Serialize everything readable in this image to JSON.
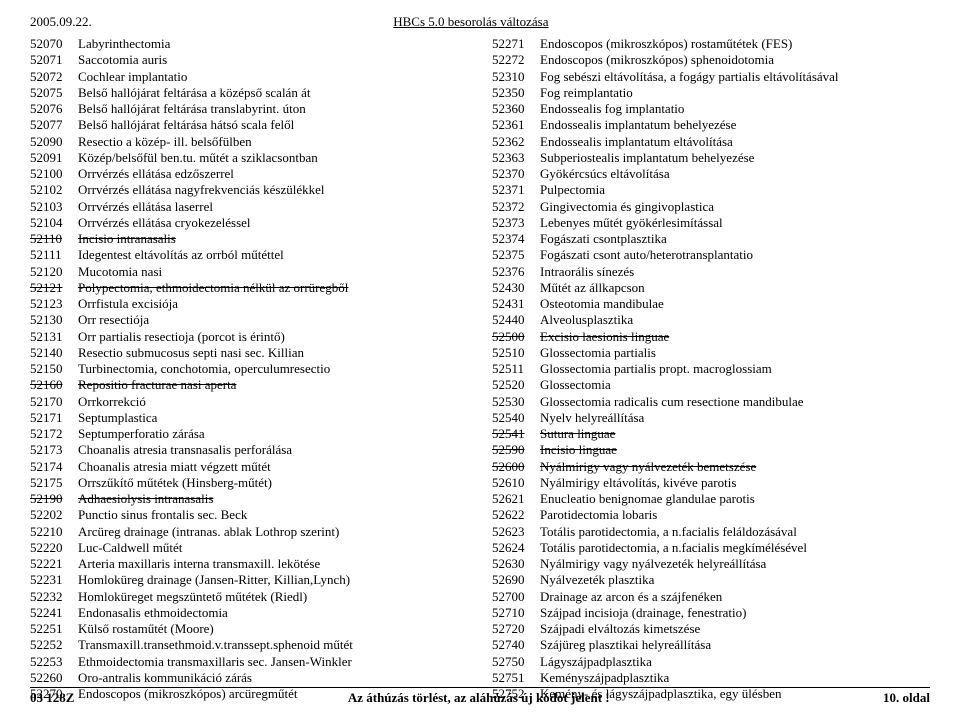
{
  "header": {
    "date": "2005.09.22.",
    "title": "HBCs 5.0 besorolás változása"
  },
  "left": [
    {
      "c": "52070",
      "t": "Labyrinthectomia"
    },
    {
      "c": "52071",
      "t": "Saccotomia auris"
    },
    {
      "c": "52072",
      "t": "Cochlear implantatio"
    },
    {
      "c": "52075",
      "t": "Belső hallójárat feltárása a középső scalán át"
    },
    {
      "c": "52076",
      "t": "Belső hallójárat feltárása translabyrint. úton"
    },
    {
      "c": "52077",
      "t": "Belső hallójárat feltárása hátsó scala felől"
    },
    {
      "c": "52090",
      "t": "Resectio a közép- ill. belsőfülben"
    },
    {
      "c": "52091",
      "t": "Közép/belsőfül ben.tu. műtét a sziklacsontban"
    },
    {
      "c": "52100",
      "t": "Orrvérzés ellátása edzőszerrel"
    },
    {
      "c": "52102",
      "t": "Orrvérzés ellátása nagyfrekvenciás készülékkel"
    },
    {
      "c": "52103",
      "t": "Orrvérzés ellátása laserrel"
    },
    {
      "c": "52104",
      "t": "Orrvérzés ellátása cryokezeléssel"
    },
    {
      "c": "52110",
      "t": "Incisio intranasalis",
      "s": true
    },
    {
      "c": "52111",
      "t": "Idegentest eltávolítás az orrból műtéttel"
    },
    {
      "c": "52120",
      "t": "Mucotomia nasi"
    },
    {
      "c": "52121",
      "t": "Polypectomia, ethmoidectomia nélkül az orrüregből",
      "s": true
    },
    {
      "c": "52123",
      "t": "Orrfistula excisiója"
    },
    {
      "c": "52130",
      "t": "Orr resectiója"
    },
    {
      "c": "52131",
      "t": "Orr partialis resectioja (porcot is érintő)"
    },
    {
      "c": "52140",
      "t": "Resectio submucosus septi nasi sec. Killian"
    },
    {
      "c": "52150",
      "t": "Turbinectomia, conchotomia, operculumresectio"
    },
    {
      "c": "52160",
      "t": "Repositio fracturae nasi aperta",
      "s": true
    },
    {
      "c": "52170",
      "t": "Orrkorrekció"
    },
    {
      "c": "52171",
      "t": "Septumplastica"
    },
    {
      "c": "52172",
      "t": "Septumperforatio zárása"
    },
    {
      "c": "52173",
      "t": "Choanalis atresia transnasalis perforálása"
    },
    {
      "c": "52174",
      "t": "Choanalis atresia miatt végzett műtét"
    },
    {
      "c": "52175",
      "t": "Orrszűkítő műtétek (Hinsberg-műtét)"
    },
    {
      "c": "52190",
      "t": "Adhaesiolysis intranasalis",
      "s": true
    },
    {
      "c": "52202",
      "t": "Punctio sinus frontalis sec. Beck"
    },
    {
      "c": "52210",
      "t": "Arcüreg drainage (intranas. ablak Lothrop szerint)"
    },
    {
      "c": "52220",
      "t": "Luc-Caldwell műtét"
    },
    {
      "c": "52221",
      "t": "Arteria maxillaris interna transmaxill. lekötése"
    },
    {
      "c": "52231",
      "t": "Homloküreg drainage (Jansen-Ritter, Killian,Lynch)"
    },
    {
      "c": "52232",
      "t": "Homloküreget megszüntető műtétek (Riedl)"
    },
    {
      "c": "52241",
      "t": "Endonasalis ethmoidectomia"
    },
    {
      "c": "52251",
      "t": "Külső  rostaműtét (Moore)"
    },
    {
      "c": "52252",
      "t": "Transmaxill.transethmoid.v.transsept.sphenoid műtét"
    },
    {
      "c": "52253",
      "t": "Ethmoidectomia transmaxillaris sec. Jansen-Winkler"
    },
    {
      "c": "52260",
      "t": "Oro-antralis kommunikáció zárás"
    },
    {
      "c": "52270",
      "t": "Endoscopos (mikroszkópos) arcüregműtét"
    }
  ],
  "right": [
    {
      "c": "52271",
      "t": "Endoscopos (mikroszkópos) rostaműtétek (FES)"
    },
    {
      "c": "52272",
      "t": "Endoscopos (mikroszkópos) sphenoidotomia"
    },
    {
      "c": "52310",
      "t": "Fog sebészi eltávolítása, a fogágy partialis eltávolításával"
    },
    {
      "c": "52350",
      "t": "Fog reimplantatio"
    },
    {
      "c": "52360",
      "t": "Endossealis fog implantatio"
    },
    {
      "c": "52361",
      "t": "Endossealis implantatum behelyezése"
    },
    {
      "c": "52362",
      "t": "Endossealis implantatum eltávolítása"
    },
    {
      "c": "52363",
      "t": "Subperiostealis implantatum behelyezése"
    },
    {
      "c": "52370",
      "t": "Gyökércsúcs eltávolítása"
    },
    {
      "c": "52371",
      "t": "Pulpectomia"
    },
    {
      "c": "52372",
      "t": "Gingivectomia és gingivoplastica"
    },
    {
      "c": "52373",
      "t": "Lebenyes műtét gyökérlesimítással"
    },
    {
      "c": "52374",
      "t": "Fogászati csontplasztika"
    },
    {
      "c": "52375",
      "t": "Fogászati csont auto/heterotransplantatio"
    },
    {
      "c": "52376",
      "t": "Intraorális sínezés"
    },
    {
      "c": "52430",
      "t": "Műtét az állkapcson"
    },
    {
      "c": "52431",
      "t": "Osteotomia mandibulae"
    },
    {
      "c": "52440",
      "t": "Alveolusplasztika"
    },
    {
      "c": "52500",
      "t": "Excisio laesionis linguae",
      "s": true
    },
    {
      "c": "52510",
      "t": "Glossectomia partialis"
    },
    {
      "c": "52511",
      "t": "Glossectomia partialis propt. macroglossiam"
    },
    {
      "c": "52520",
      "t": "Glossectomia"
    },
    {
      "c": "52530",
      "t": "Glossectomia radicalis cum resectione mandibulae"
    },
    {
      "c": "52540",
      "t": "Nyelv helyreállítása"
    },
    {
      "c": "52541",
      "t": "Sutura linguae",
      "s": true
    },
    {
      "c": "52590",
      "t": "Incisio linguae",
      "s": true
    },
    {
      "c": "52600",
      "t": "Nyálmirigy vagy nyálvezeték bemetszése",
      "s": true
    },
    {
      "c": "52610",
      "t": "Nyálmirigy eltávolítás, kivéve parotis"
    },
    {
      "c": "52621",
      "t": "Enucleatio benignomae glandulae parotis"
    },
    {
      "c": "52622",
      "t": "Parotidectomia lobaris"
    },
    {
      "c": "52623",
      "t": "Totális parotidectomia, a n.facialis feláldozásával"
    },
    {
      "c": "52624",
      "t": "Totális parotidectomia, a n.facialis megkímélésével"
    },
    {
      "c": "52630",
      "t": "Nyálmirigy vagy nyálvezeték helyreállítása"
    },
    {
      "c": "52690",
      "t": "Nyálvezeték plasztika"
    },
    {
      "c": "52700",
      "t": "Drainage az arcon és a szájfenéken"
    },
    {
      "c": "52710",
      "t": "Szájpad incisioja (drainage, fenestratio)"
    },
    {
      "c": "52720",
      "t": "Szájpadi elváltozás kimetszése"
    },
    {
      "c": "52740",
      "t": "Szájüreg plasztikai helyreállítása"
    },
    {
      "c": "52750",
      "t": "Lágyszájpadplasztika"
    },
    {
      "c": "52751",
      "t": "Keményszájpadplasztika"
    },
    {
      "c": "52752",
      "t": "Kemény- és lágyszájpadplasztika, egy ülésben"
    }
  ],
  "footer": {
    "left": "03 128Z",
    "mid": "Az áthúzás törlést, az aláhúzás új kódot jelent !",
    "right": "10. oldal"
  }
}
